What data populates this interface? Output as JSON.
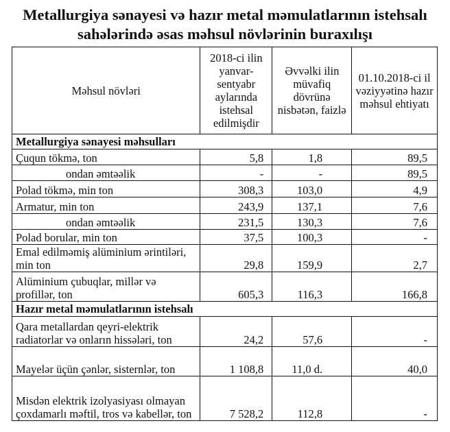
{
  "title": {
    "line1": "Metallurgiya sənayesi və hazır metal məmulatlarının istehsalı",
    "line2": "sahələrində əsas məhsul növlərinin buraxılışı"
  },
  "table": {
    "headers": [
      "Məhsul növləri",
      "2018-ci ilin yanvar-sentyabr aylarında istehsal edilmişdir",
      "Əvvəlki ilin müvafiq dövrünə nisbətən, faizlə",
      "01.10.2018-ci il vəziyyətinə hazır məhsul ehtiyatı"
    ],
    "sections": [
      {
        "title": "Metallurgiya sənayesi məhsulları",
        "rows": [
          {
            "name": "Çuqun tökmə, ton",
            "v1": "5,8",
            "v2": "1,8",
            "v3": "89,5"
          },
          {
            "name": "ondan əmtəəlik",
            "v1": "-",
            "v2": "-",
            "v3": "89,5"
          },
          {
            "name": "Polad tökmə, min ton",
            "v1": "308,3",
            "v2": "103,0",
            "v3": "4,9"
          },
          {
            "name": "Armatur, min ton",
            "v1": "243,9",
            "v2": "137,1",
            "v3": "7,6"
          },
          {
            "name": "ondan əmtəəlik",
            "v1": "231,5",
            "v2": "130,3",
            "v3": "7,6"
          },
          {
            "name": "Polad borular,  min ton",
            "v1": "37,5",
            "v2": "100,3",
            "v3": "-"
          },
          {
            "name": "Emal edilməmiş alüminium ərintiləri, min ton",
            "v1": "29,8",
            "v2": "159,9",
            "v3": "2,7"
          },
          {
            "name": "Alüminium çubuqlar, millər və profillər, ton",
            "v1": "605,3",
            "v2": "116,3",
            "v3": "166,8"
          }
        ]
      },
      {
        "title": "Hazır metal məmulatlarının istehsalı",
        "rows": [
          {
            "name": "Qara metallardan qeyri-elektrik radiatorlar və onların hissələri, ton",
            "v1": "24,2",
            "v2": "57,6",
            "v3": "-"
          },
          {
            "name": "Mayelər üçün çənlər, sisternlər, ton",
            "v1": "1 108,8",
            "v2": "11,0 d.",
            "v3": "40,0"
          },
          {
            "name": "Misdən elektrik izolyasiyası olmayan çoxdamarlı məftil, tros və kabellər, ton",
            "v1": "7 528,2",
            "v2": "112,8",
            "v3": "-"
          }
        ]
      }
    ]
  }
}
